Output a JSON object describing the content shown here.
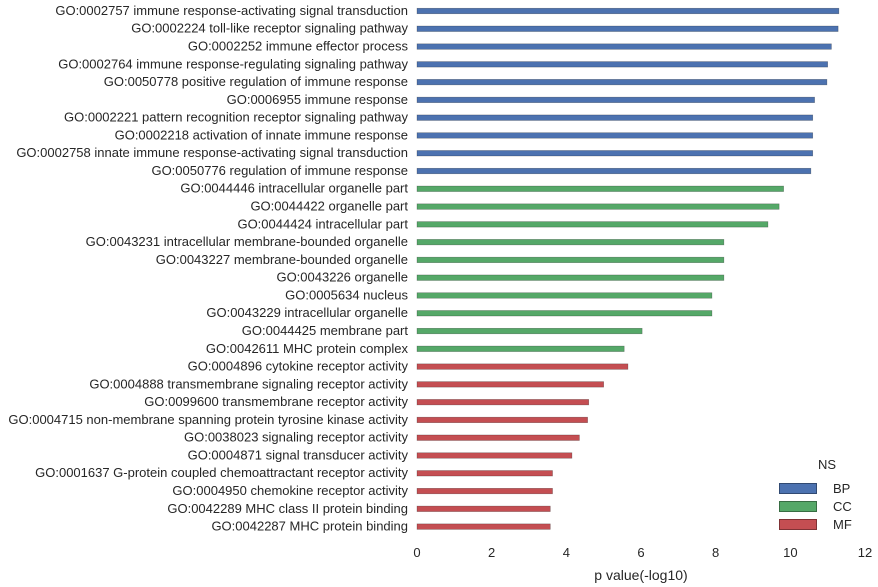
{
  "chart_data": {
    "type": "bar",
    "orientation": "horizontal",
    "xlabel": "p value(-log10)",
    "xlim": [
      0,
      12
    ],
    "xticks": [
      "0",
      "2",
      "4",
      "6",
      "8",
      "10",
      "12"
    ],
    "grid": false,
    "legend": {
      "title": "NS",
      "placement": "bottom-right",
      "entries": [
        {
          "label": "BP",
          "color": "#4c72b0"
        },
        {
          "label": "CC",
          "color": "#55a868"
        },
        {
          "label": "MF",
          "color": "#c44e52"
        }
      ]
    },
    "bars": [
      {
        "label": "GO:0002757 immune response-activating signal transduction",
        "value": 11.3,
        "ns": "BP"
      },
      {
        "label": "GO:0002224 toll-like receptor signaling pathway",
        "value": 11.28,
        "ns": "BP"
      },
      {
        "label": "GO:0002252 immune effector process",
        "value": 11.1,
        "ns": "BP"
      },
      {
        "label": "GO:0002764 immune response-regulating signaling pathway",
        "value": 11.0,
        "ns": "BP"
      },
      {
        "label": "GO:0050778 positive regulation of immune response",
        "value": 10.98,
        "ns": "BP"
      },
      {
        "label": "GO:0006955 immune response",
        "value": 10.65,
        "ns": "BP"
      },
      {
        "label": "GO:0002221 pattern recognition receptor signaling pathway",
        "value": 10.6,
        "ns": "BP"
      },
      {
        "label": "GO:0002218 activation of innate immune response",
        "value": 10.6,
        "ns": "BP"
      },
      {
        "label": "GO:0002758 innate immune response-activating signal transduction",
        "value": 10.6,
        "ns": "BP"
      },
      {
        "label": "GO:0050776 regulation of immune response",
        "value": 10.55,
        "ns": "BP"
      },
      {
        "label": "GO:0044446 intracellular organelle part",
        "value": 9.82,
        "ns": "CC"
      },
      {
        "label": "GO:0044422 organelle part",
        "value": 9.7,
        "ns": "CC"
      },
      {
        "label": "GO:0044424 intracellular part",
        "value": 9.4,
        "ns": "CC"
      },
      {
        "label": "GO:0043231 intracellular membrane-bounded organelle",
        "value": 8.22,
        "ns": "CC"
      },
      {
        "label": "GO:0043227 membrane-bounded organelle",
        "value": 8.22,
        "ns": "CC"
      },
      {
        "label": "GO:0043226 organelle",
        "value": 8.22,
        "ns": "CC"
      },
      {
        "label": "GO:0005634 nucleus",
        "value": 7.9,
        "ns": "CC"
      },
      {
        "label": "GO:0043229 intracellular organelle",
        "value": 7.9,
        "ns": "CC"
      },
      {
        "label": "GO:0044425 membrane part",
        "value": 6.03,
        "ns": "CC"
      },
      {
        "label": "GO:0042611 MHC protein complex",
        "value": 5.55,
        "ns": "CC"
      },
      {
        "label": "GO:0004896 cytokine receptor activity",
        "value": 5.65,
        "ns": "MF"
      },
      {
        "label": "GO:0004888 transmembrane signaling receptor activity",
        "value": 5.0,
        "ns": "MF"
      },
      {
        "label": "GO:0099600 transmembrane receptor activity",
        "value": 4.6,
        "ns": "MF"
      },
      {
        "label": "GO:0004715 non-membrane spanning protein tyrosine kinase activity",
        "value": 4.57,
        "ns": "MF"
      },
      {
        "label": "GO:0038023 signaling receptor activity",
        "value": 4.35,
        "ns": "MF"
      },
      {
        "label": "GO:0004871 signal transducer activity",
        "value": 4.15,
        "ns": "MF"
      },
      {
        "label": "GO:0001637 G-protein coupled chemoattractant receptor activity",
        "value": 3.63,
        "ns": "MF"
      },
      {
        "label": "GO:0004950 chemokine receptor activity",
        "value": 3.63,
        "ns": "MF"
      },
      {
        "label": "GO:0042289 MHC class II protein binding",
        "value": 3.57,
        "ns": "MF"
      },
      {
        "label": "GO:0042287 MHC protein binding",
        "value": 3.57,
        "ns": "MF"
      }
    ]
  }
}
